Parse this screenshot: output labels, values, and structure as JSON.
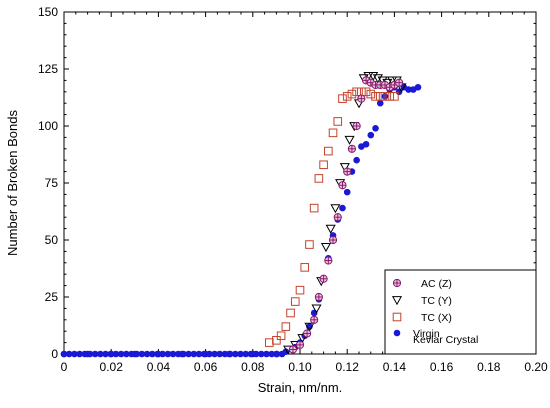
{
  "chart_data": {
    "type": "scatter",
    "xlabel": "Strain, nm/nm.",
    "ylabel": "Number of Broken Bonds",
    "xlim": [
      0,
      0.2
    ],
    "ylim": [
      0,
      150
    ],
    "xticks": [
      "0",
      "0.02",
      "0.04",
      "0.06",
      "0.08",
      "0.10",
      "0.12",
      "0.14",
      "0.16",
      "0.18",
      "0.20"
    ],
    "yticks": [
      "0",
      "25",
      "50",
      "75",
      "100",
      "125",
      "150"
    ],
    "xtick_values": [
      0,
      0.02,
      0.04,
      0.06,
      0.08,
      0.1,
      0.12,
      0.14,
      0.16,
      0.18,
      0.2
    ],
    "ytick_values": [
      0,
      25,
      50,
      75,
      100,
      125,
      150
    ],
    "grid": false,
    "legend_position": "bottom-right",
    "series": [
      {
        "name": "AC (Z)",
        "marker": "circle-plus",
        "color": "#8b1a6b",
        "x": [
          0.097,
          0.1,
          0.103,
          0.106,
          0.108,
          0.11,
          0.112,
          0.114,
          0.116,
          0.118,
          0.12,
          0.122,
          0.124,
          0.126,
          0.128,
          0.13,
          0.132,
          0.134,
          0.136,
          0.138,
          0.14,
          0.142
        ],
        "y": [
          2,
          4,
          9,
          15,
          25,
          33,
          41,
          50,
          60,
          74,
          80,
          90,
          100,
          112,
          120,
          119,
          118,
          118,
          118,
          117,
          118,
          119
        ]
      },
      {
        "name": "TC (Y)",
        "marker": "triangle-down",
        "color": "#000000",
        "x": [
          0.095,
          0.098,
          0.101,
          0.104,
          0.107,
          0.109,
          0.111,
          0.113,
          0.115,
          0.117,
          0.119,
          0.121,
          0.123,
          0.125,
          0.127,
          0.129,
          0.131,
          0.133,
          0.135,
          0.137,
          0.139,
          0.141,
          0.143
        ],
        "y": [
          2,
          4,
          7,
          12,
          20,
          32,
          47,
          55,
          64,
          75,
          82,
          94,
          100,
          110,
          121,
          122,
          122,
          121,
          120,
          119,
          120,
          120,
          117
        ]
      },
      {
        "name": "TC (X)",
        "marker": "square",
        "color": "#c4432b",
        "x": [
          0.087,
          0.09,
          0.092,
          0.094,
          0.096,
          0.098,
          0.1,
          0.102,
          0.104,
          0.106,
          0.108,
          0.11,
          0.112,
          0.114,
          0.116,
          0.118,
          0.12,
          0.122,
          0.124,
          0.126,
          0.128,
          0.13,
          0.132,
          0.134,
          0.136,
          0.138,
          0.14
        ],
        "y": [
          5,
          6,
          8,
          12,
          18,
          23,
          28,
          38,
          48,
          64,
          77,
          83,
          89,
          97,
          102,
          112,
          113,
          114,
          115,
          115,
          115,
          114,
          113,
          113,
          113,
          113,
          113
        ]
      },
      {
        "name": "Virgin",
        "marker": "filled-circle",
        "color": "#1919d6",
        "x": [
          0,
          0.01,
          0.02,
          0.03,
          0.04,
          0.05,
          0.06,
          0.07,
          0.08,
          0.09,
          0.094,
          0.098,
          0.1,
          0.102,
          0.104,
          0.106,
          0.108,
          0.11,
          0.112,
          0.114,
          0.116,
          0.118,
          0.12,
          0.122,
          0.124,
          0.126,
          0.128,
          0.13,
          0.132,
          0.134,
          0.136,
          0.138,
          0.14,
          0.142,
          0.144,
          0.146,
          0.148,
          0.15
        ],
        "y": [
          0,
          0,
          0,
          0,
          0,
          0,
          0,
          0,
          0,
          0,
          1,
          3,
          5,
          8,
          12,
          18,
          24,
          33,
          42,
          52,
          59,
          64,
          71,
          80,
          85,
          91,
          92,
          96,
          99,
          110,
          113,
          116,
          117,
          115,
          117,
          116,
          116,
          117
        ]
      }
    ],
    "legend_extra_line": "Kevlar Crystal"
  }
}
